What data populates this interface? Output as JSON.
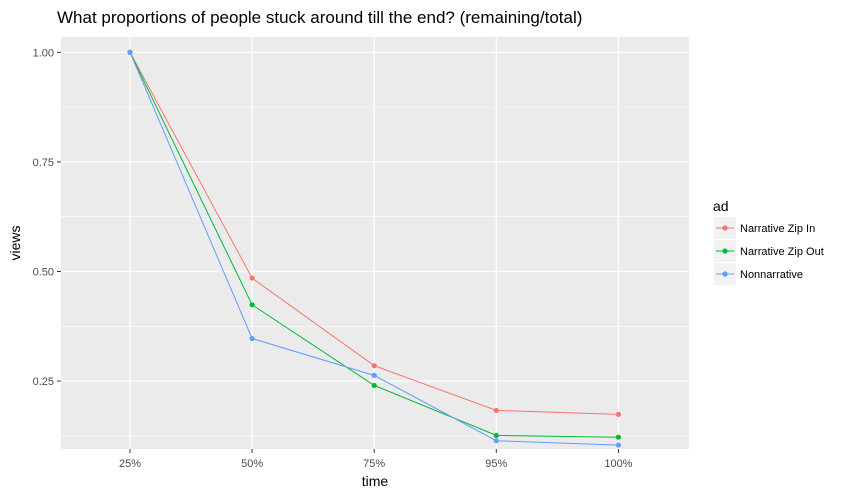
{
  "chart_data": {
    "type": "line",
    "title": "What proportions of people stuck around till the end? (remaining/total)",
    "xlabel": "time",
    "ylabel": "views",
    "categories": [
      "25%",
      "50%",
      "75%",
      "95%",
      "100%"
    ],
    "ylim": [
      0.095,
      1.035
    ],
    "yticks": [
      1.0,
      0.75,
      0.5,
      0.25
    ],
    "ytick_labels": [
      "1.00",
      "0.75",
      "0.50",
      "0.25"
    ],
    "grid": true,
    "legend": {
      "title": "ad",
      "position": "right"
    },
    "series": [
      {
        "name": "Narrative Zip In",
        "color": "#F8766D",
        "values": [
          1.0,
          0.485,
          0.285,
          0.183,
          0.174
        ]
      },
      {
        "name": "Narrative Zip Out",
        "color": "#00BA38",
        "values": [
          1.0,
          0.424,
          0.24,
          0.126,
          0.122
        ]
      },
      {
        "name": "Nonnarrative",
        "color": "#619CFF",
        "values": [
          1.0,
          0.347,
          0.263,
          0.114,
          0.104
        ]
      }
    ]
  }
}
